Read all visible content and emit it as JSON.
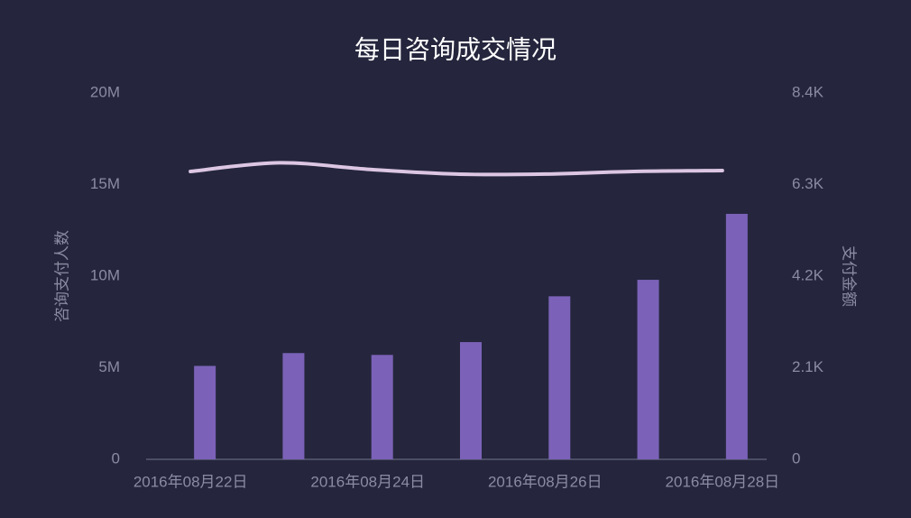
{
  "chart_data": {
    "type": "bar-line",
    "title": "每日咨询成交情况",
    "categories": [
      "2016年08月22日",
      null,
      "2016年08月24日",
      null,
      "2016年08月26日",
      null,
      "2016年08月28日"
    ],
    "y_label": "咨询支付人数",
    "y2_label": "支付金额",
    "ylim": [
      0,
      20000000
    ],
    "yticks": [
      0,
      {
        "value": 5000000,
        "label": "5M"
      },
      {
        "value": 10000000,
        "label": "10M"
      },
      {
        "value": 15000000,
        "label": "15M"
      },
      {
        "value": 20000000,
        "label": "20M"
      }
    ],
    "y2lim": [
      0,
      8400
    ],
    "y2ticks": [
      0,
      {
        "value": 2100,
        "label": "2.1K"
      },
      {
        "value": 4200,
        "label": "4.2K"
      },
      {
        "value": 6300,
        "label": "6.3K"
      },
      {
        "value": 8400,
        "label": "8.4K"
      }
    ],
    "series": [
      {
        "name": "咨询支付人数",
        "kind": "bar",
        "color": "#7b62b8",
        "values": [
          5100000,
          5800000,
          5700000,
          6400000,
          8900000,
          9800000,
          13400000
        ]
      },
      {
        "name": "支付金额",
        "kind": "line",
        "axis": "y2",
        "color": "#dcc6e4",
        "values": [
          6600,
          6800,
          6650,
          6540,
          6540,
          6600,
          6620
        ]
      }
    ]
  }
}
